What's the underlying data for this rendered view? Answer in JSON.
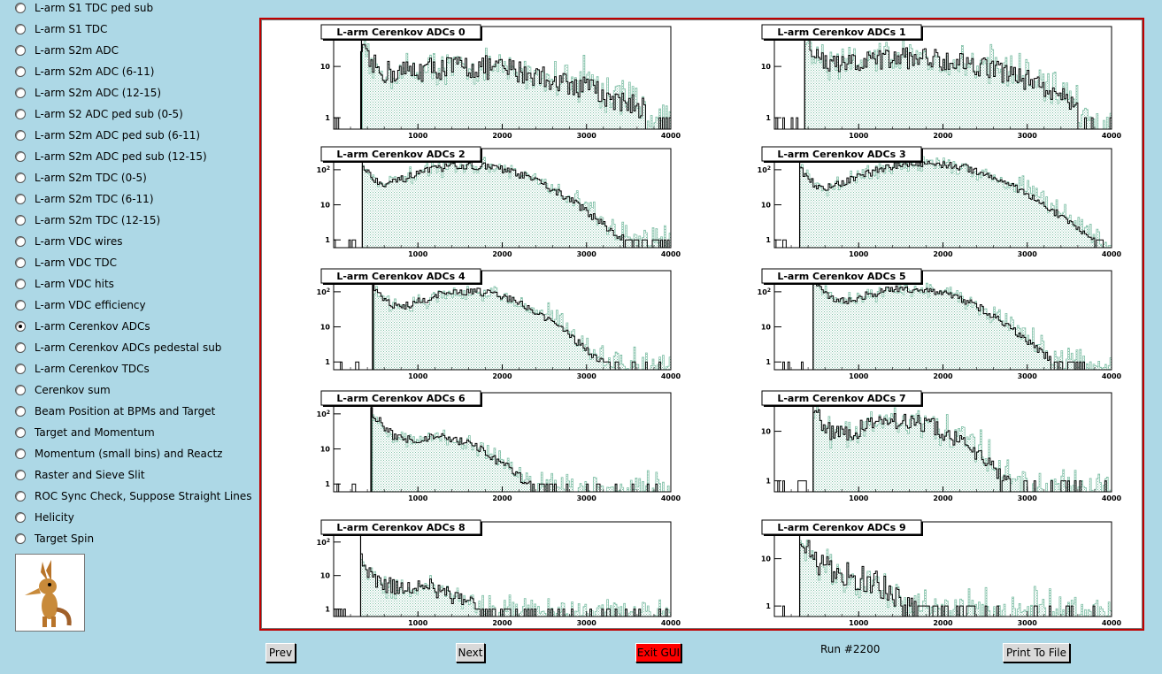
{
  "sidebar": {
    "items": [
      {
        "label": "L-arm S1 TDC ped sub",
        "selected": false
      },
      {
        "label": "L-arm S1 TDC",
        "selected": false
      },
      {
        "label": "L-arm S2m ADC",
        "selected": false
      },
      {
        "label": "L-arm S2m ADC (6-11)",
        "selected": false
      },
      {
        "label": "L-arm S2m ADC (12-15)",
        "selected": false
      },
      {
        "label": "L-arm S2 ADC ped sub (0-5)",
        "selected": false
      },
      {
        "label": "L-arm S2m ADC ped sub (6-11)",
        "selected": false
      },
      {
        "label": "L-arm S2m ADC ped sub (12-15)",
        "selected": false
      },
      {
        "label": "L-arm S2m TDC (0-5)",
        "selected": false
      },
      {
        "label": "L-arm S2m TDC (6-11)",
        "selected": false
      },
      {
        "label": "L-arm S2m TDC (12-15)",
        "selected": false
      },
      {
        "label": "L-arm VDC wires",
        "selected": false
      },
      {
        "label": "L-arm VDC TDC",
        "selected": false
      },
      {
        "label": "L-arm VDC hits",
        "selected": false
      },
      {
        "label": "L-arm VDC efficiency",
        "selected": false
      },
      {
        "label": "L-arm Cerenkov ADCs",
        "selected": true
      },
      {
        "label": "L-arm Cerenkov ADCs pedestal sub",
        "selected": false
      },
      {
        "label": "L-arm Cerenkov TDCs",
        "selected": false
      },
      {
        "label": "Cerenkov sum",
        "selected": false
      },
      {
        "label": "Beam Position at BPMs and Target",
        "selected": false
      },
      {
        "label": "Target and Momentum",
        "selected": false
      },
      {
        "label": "Momentum (small bins) and Reactz",
        "selected": false
      },
      {
        "label": "Raster and Sieve Slit",
        "selected": false
      },
      {
        "label": "ROC Sync Check, Suppose Straight Lines",
        "selected": false
      },
      {
        "label": "Helicity",
        "selected": false
      },
      {
        "label": "Target Spin",
        "selected": false
      }
    ]
  },
  "buttons": {
    "prev": "Prev",
    "next": "Next",
    "exit": "Exit GUI",
    "print": "Print To File"
  },
  "run_label": "Run #2200",
  "colors": {
    "background": "#add8e6",
    "frame_border": "#c00000",
    "fill_hist": "#7fbfa6",
    "line_hist": "#000000",
    "exit_button": "#ff0000"
  },
  "chart_data": [
    {
      "type": "histogram",
      "title": "L-arm Cerenkov ADCs 0",
      "x_ticks": [
        "1000",
        "2000",
        "3000",
        "4000"
      ],
      "y_ticks": [
        "1",
        "10"
      ],
      "xlim": [
        0,
        4000
      ],
      "y_scale": "log",
      "pedestal": 330,
      "peak": 14,
      "bump": 9,
      "bump_center": 1600,
      "bump_width": 1400,
      "cutoff": 3700,
      "noise": 0.55
    },
    {
      "type": "histogram",
      "title": "L-arm Cerenkov ADCs 1",
      "x_ticks": [
        "1000",
        "2000",
        "3000",
        "4000"
      ],
      "y_ticks": [
        "1",
        "10"
      ],
      "xlim": [
        0,
        4000
      ],
      "y_scale": "log",
      "pedestal": 360,
      "peak": 30,
      "bump": 14,
      "bump_center": 1700,
      "bump_width": 1300,
      "cutoff": 3600,
      "noise": 0.5
    },
    {
      "type": "histogram",
      "title": "L-arm Cerenkov ADCs 2",
      "x_ticks": [
        "1000",
        "2000",
        "3000",
        "4000"
      ],
      "y_ticks": [
        "1",
        "10",
        "10^2"
      ],
      "xlim": [
        0,
        4000
      ],
      "y_scale": "log",
      "pedestal": 340,
      "peak": 120,
      "bump": 130,
      "bump_center": 1600,
      "bump_width": 800,
      "cutoff": 3900,
      "noise": 0.25
    },
    {
      "type": "histogram",
      "title": "L-arm Cerenkov ADCs 3",
      "x_ticks": [
        "1000",
        "2000",
        "3000",
        "4000"
      ],
      "y_ticks": [
        "1",
        "10",
        "10^2"
      ],
      "xlim": [
        0,
        4000
      ],
      "y_scale": "log",
      "pedestal": 300,
      "peak": 110,
      "bump": 150,
      "bump_center": 1800,
      "bump_width": 850,
      "cutoff": 3900,
      "noise": 0.25
    },
    {
      "type": "histogram",
      "title": "L-arm Cerenkov ADCs 4",
      "x_ticks": [
        "1000",
        "2000",
        "3000",
        "4000"
      ],
      "y_ticks": [
        "1",
        "10",
        "10^2"
      ],
      "xlim": [
        0,
        4000
      ],
      "y_scale": "log",
      "pedestal": 470,
      "peak": 150,
      "bump": 100,
      "bump_center": 1600,
      "bump_width": 700,
      "cutoff": 3400,
      "noise": 0.25
    },
    {
      "type": "histogram",
      "title": "L-arm Cerenkov ADCs 5",
      "x_ticks": [
        "1000",
        "2000",
        "3000",
        "4000"
      ],
      "y_ticks": [
        "1",
        "10",
        "10^2"
      ],
      "xlim": [
        0,
        4000
      ],
      "y_scale": "log",
      "pedestal": 460,
      "peak": 250,
      "bump": 120,
      "bump_center": 1600,
      "bump_width": 750,
      "cutoff": 3700,
      "noise": 0.25
    },
    {
      "type": "histogram",
      "title": "L-arm Cerenkov ADCs 6",
      "x_ticks": [
        "1000",
        "2000",
        "3000",
        "4000"
      ],
      "y_ticks": [
        "1",
        "10",
        "10^2"
      ],
      "xlim": [
        0,
        4000
      ],
      "y_scale": "log",
      "pedestal": 450,
      "peak": 120,
      "bump": 20,
      "bump_center": 1200,
      "bump_width": 600,
      "cutoff": 2600,
      "noise": 0.3
    },
    {
      "type": "histogram",
      "title": "L-arm Cerenkov ADCs 7",
      "x_ticks": [
        "1000",
        "2000",
        "3000",
        "4000"
      ],
      "y_ticks": [
        "1",
        "10"
      ],
      "xlim": [
        0,
        4000
      ],
      "y_scale": "log",
      "pedestal": 460,
      "peak": 28,
      "bump": 16,
      "bump_center": 1500,
      "bump_width": 700,
      "cutoff": 2800,
      "noise": 0.4
    },
    {
      "type": "histogram",
      "title": "L-arm Cerenkov ADCs 8",
      "x_ticks": [
        "1000",
        "2000",
        "3000",
        "4000"
      ],
      "y_ticks": [
        "1",
        "10",
        "10^2"
      ],
      "xlim": [
        0,
        4000
      ],
      "y_scale": "log",
      "pedestal": 320,
      "peak": 25,
      "bump": 4,
      "bump_center": 1000,
      "bump_width": 500,
      "cutoff": 2400,
      "noise": 0.6
    },
    {
      "type": "histogram",
      "title": "L-arm Cerenkov ADCs 9",
      "x_ticks": [
        "1000",
        "2000",
        "3000",
        "4000"
      ],
      "y_ticks": [
        "1",
        "10"
      ],
      "xlim": [
        0,
        4000
      ],
      "y_scale": "log",
      "pedestal": 300,
      "peak": 40,
      "bump": 3,
      "bump_center": 900,
      "bump_width": 500,
      "cutoff": 2400,
      "noise": 0.7
    }
  ]
}
